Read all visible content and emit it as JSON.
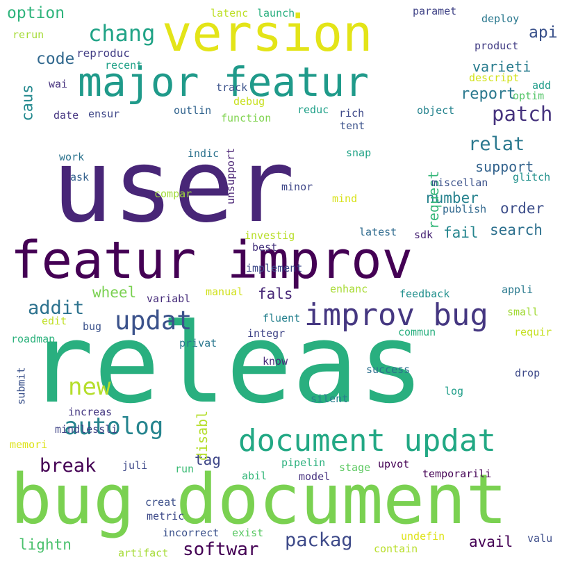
{
  "words": [
    {
      "text": "user",
      "color": "#482677"
    },
    {
      "text": "releas",
      "color": "#29af7f"
    },
    {
      "text": "bug document",
      "color": "#7ad151"
    },
    {
      "text": "featur improv",
      "color": "#440154"
    },
    {
      "text": "version",
      "color": "#e3e418"
    },
    {
      "text": "major featur",
      "color": "#1f9a8a"
    },
    {
      "text": "document updat",
      "color": "#22a884"
    },
    {
      "text": "improv bug",
      "color": "#453781"
    },
    {
      "text": "updat",
      "color": "#3b528b"
    },
    {
      "text": "new",
      "color": "#b5de2b"
    },
    {
      "text": "autolog",
      "color": "#25848e"
    },
    {
      "text": "chang",
      "color": "#20a386"
    },
    {
      "text": "patch",
      "color": "#46337e"
    },
    {
      "text": "relat",
      "color": "#2a788e"
    },
    {
      "text": "softwar",
      "color": "#440154"
    },
    {
      "text": "packag",
      "color": "#3e4a89"
    },
    {
      "text": "break",
      "color": "#440154"
    },
    {
      "text": "option",
      "color": "#2fb47c"
    },
    {
      "text": "api",
      "color": "#3b528b"
    },
    {
      "text": "code",
      "color": "#31688e"
    },
    {
      "text": "varieti",
      "color": "#287c8e"
    },
    {
      "text": "report",
      "color": "#2a788e"
    },
    {
      "text": "support",
      "color": "#33638d"
    },
    {
      "text": "number",
      "color": "#26828e"
    },
    {
      "text": "order",
      "color": "#3d4e8a"
    },
    {
      "text": "search",
      "color": "#2d708e"
    },
    {
      "text": "fail",
      "color": "#25858e"
    },
    {
      "text": "request",
      "color": "#35b779"
    },
    {
      "text": "addit",
      "color": "#2c728e"
    },
    {
      "text": "wheel",
      "color": "#7ad151"
    },
    {
      "text": "fals",
      "color": "#482878"
    },
    {
      "text": "tag",
      "color": "#3f4788"
    },
    {
      "text": "disabl",
      "color": "#b5de2b"
    },
    {
      "text": "avail",
      "color": "#440154"
    },
    {
      "text": "lightn",
      "color": "#4ac16d"
    },
    {
      "text": "caus",
      "color": "#23898e"
    },
    {
      "text": "reproduc",
      "color": "#433e85"
    },
    {
      "text": "recent",
      "color": "#1fa187"
    },
    {
      "text": "rerun",
      "color": "#a5db36"
    },
    {
      "text": "latenc",
      "color": "#bddf26"
    },
    {
      "text": "launch",
      "color": "#29af7f"
    },
    {
      "text": "paramet",
      "color": "#414487"
    },
    {
      "text": "deploy",
      "color": "#2a788e"
    },
    {
      "text": "product",
      "color": "#433e85"
    },
    {
      "text": "descript",
      "color": "#d2e21b"
    },
    {
      "text": "add",
      "color": "#1e9c89"
    },
    {
      "text": "optim",
      "color": "#54c568"
    },
    {
      "text": "wai",
      "color": "#46327e"
    },
    {
      "text": "track",
      "color": "#3b528b"
    },
    {
      "text": "debug",
      "color": "#c8e020"
    },
    {
      "text": "date",
      "color": "#453581"
    },
    {
      "text": "ensur",
      "color": "#3f4788"
    },
    {
      "text": "outlin",
      "color": "#32648e"
    },
    {
      "text": "function",
      "color": "#7fd34e"
    },
    {
      "text": "reduc",
      "color": "#1fa088"
    },
    {
      "text": "rich",
      "color": "#3e4989"
    },
    {
      "text": "tent",
      "color": "#3b528b"
    },
    {
      "text": "object",
      "color": "#25838e"
    },
    {
      "text": "work",
      "color": "#2c738e"
    },
    {
      "text": "indic",
      "color": "#2c728e"
    },
    {
      "text": "snap",
      "color": "#20a386"
    },
    {
      "text": "glitch",
      "color": "#21918c"
    },
    {
      "text": "ask",
      "color": "#34618d"
    },
    {
      "text": "compar",
      "color": "#a0da39"
    },
    {
      "text": "unsupport",
      "color": "#482173"
    },
    {
      "text": "minor",
      "color": "#3f4788"
    },
    {
      "text": "miscellan",
      "color": "#3b528b"
    },
    {
      "text": "mind",
      "color": "#d8e219"
    },
    {
      "text": "publish",
      "color": "#31688e"
    },
    {
      "text": "latest",
      "color": "#2f6b8e"
    },
    {
      "text": "sdk",
      "color": "#482475"
    },
    {
      "text": "investig",
      "color": "#b8de29"
    },
    {
      "text": "best",
      "color": "#45337d"
    },
    {
      "text": "implement",
      "color": "#3e4a89"
    },
    {
      "text": "appli",
      "color": "#29798e"
    },
    {
      "text": "manual",
      "color": "#d0e11c"
    },
    {
      "text": "enhanc",
      "color": "#a8db34"
    },
    {
      "text": "feedback",
      "color": "#21908d"
    },
    {
      "text": "variabl",
      "color": "#472d7b"
    },
    {
      "text": "small",
      "color": "#a2da37"
    },
    {
      "text": "edit",
      "color": "#c0df25"
    },
    {
      "text": "bug",
      "color": "#3b528b"
    },
    {
      "text": "fluent",
      "color": "#26818e"
    },
    {
      "text": "requir",
      "color": "#c5e021"
    },
    {
      "text": "roadmap",
      "color": "#2db27d"
    },
    {
      "text": "privat",
      "color": "#2a778e"
    },
    {
      "text": "integr",
      "color": "#404588"
    },
    {
      "text": "commun",
      "color": "#29af7f"
    },
    {
      "text": "know",
      "color": "#482979"
    },
    {
      "text": "submit",
      "color": "#3b528b"
    },
    {
      "text": "success",
      "color": "#2d708e"
    },
    {
      "text": "drop",
      "color": "#3e4a89"
    },
    {
      "text": "increas",
      "color": "#453882"
    },
    {
      "text": "silent",
      "color": "#287d8e"
    },
    {
      "text": "log",
      "color": "#1f9e89"
    },
    {
      "text": "mindlessli",
      "color": "#414487"
    },
    {
      "text": "memori",
      "color": "#dde318"
    },
    {
      "text": "juli",
      "color": "#3e4989"
    },
    {
      "text": "run",
      "color": "#3bbb75"
    },
    {
      "text": "pipelin",
      "color": "#2cb17e"
    },
    {
      "text": "stage",
      "color": "#5ec962"
    },
    {
      "text": "upvot",
      "color": "#440154"
    },
    {
      "text": "abil",
      "color": "#35b779"
    },
    {
      "text": "model",
      "color": "#46317e"
    },
    {
      "text": "temporarili",
      "color": "#440154"
    },
    {
      "text": "creat",
      "color": "#3c4f8a"
    },
    {
      "text": "metric",
      "color": "#3e4a89"
    },
    {
      "text": "incorrect",
      "color": "#3b518b"
    },
    {
      "text": "exist",
      "color": "#5ac864"
    },
    {
      "text": "undefin",
      "color": "#dde318"
    },
    {
      "text": "valu",
      "color": "#3d4d8a"
    },
    {
      "text": "artifact",
      "color": "#a5db36"
    },
    {
      "text": "contain",
      "color": "#b8de29"
    }
  ]
}
